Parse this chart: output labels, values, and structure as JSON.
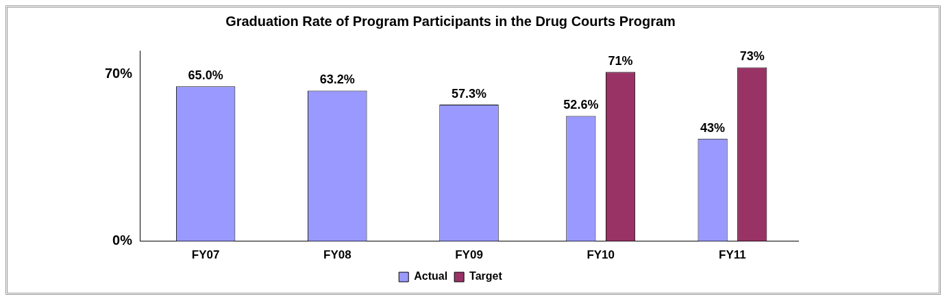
{
  "chart_data": {
    "type": "bar",
    "title": "Graduation Rate of Program Participants in the Drug Courts Program",
    "categories": [
      "FY07",
      "FY08",
      "FY09",
      "FY10",
      "FY11"
    ],
    "series": [
      {
        "name": "Actual",
        "color": "#9999ff",
        "values": [
          65.0,
          63.2,
          57.3,
          52.6,
          43
        ],
        "value_labels": [
          "65.0%",
          "63.2%",
          "57.3%",
          "52.6%",
          "43%"
        ]
      },
      {
        "name": "Target",
        "color": "#993366",
        "values": [
          null,
          null,
          null,
          71,
          73
        ],
        "value_labels": [
          null,
          null,
          null,
          "71%",
          "73%"
        ]
      }
    ],
    "ylim": [
      0,
      80
    ],
    "yticks": [
      {
        "value": 0,
        "label": "0%"
      },
      {
        "value": 70,
        "label": "70%"
      }
    ],
    "grid": false,
    "legend": "bottom"
  }
}
